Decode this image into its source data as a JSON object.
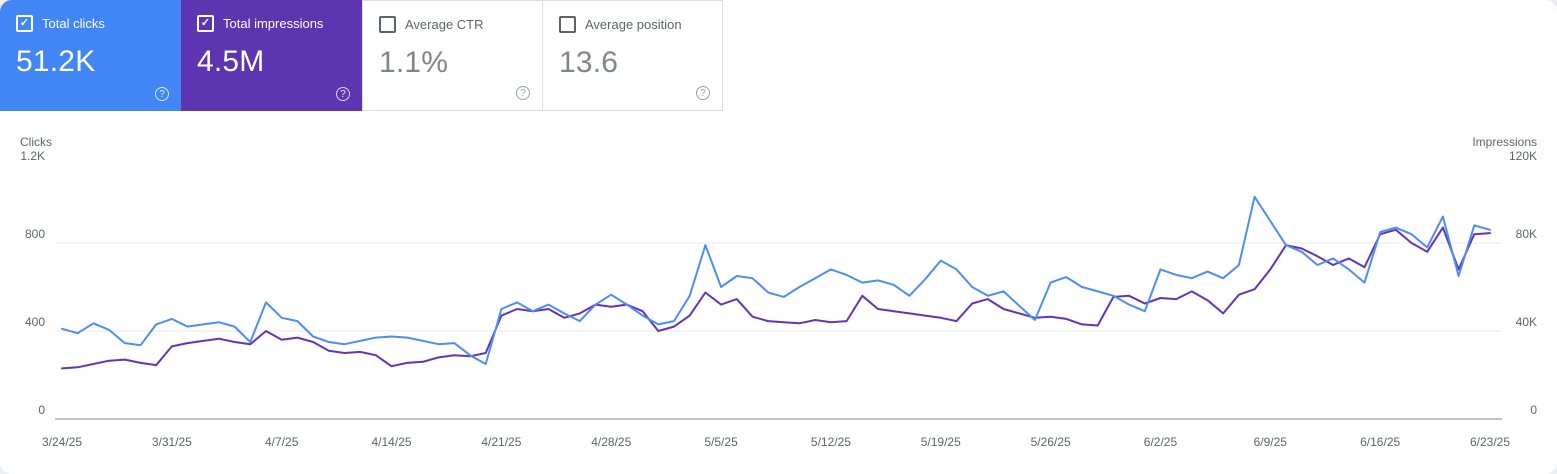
{
  "cards": [
    {
      "id": "total-clicks",
      "label": "Total clicks",
      "value": "51.2K",
      "selected": true,
      "bg": "#4285f4"
    },
    {
      "id": "total-impressions",
      "label": "Total impressions",
      "value": "4.5M",
      "selected": true,
      "bg": "#5e35b1"
    },
    {
      "id": "average-ctr",
      "label": "Average CTR",
      "value": "1.1%",
      "selected": false
    },
    {
      "id": "average-position",
      "label": "Average position",
      "value": "13.6",
      "selected": false
    }
  ],
  "chart_data": {
    "type": "line",
    "start_date": "3/24/25",
    "end_date": "6/23/25",
    "x_labels": [
      "3/24/25",
      "3/31/25",
      "4/7/25",
      "4/14/25",
      "4/21/25",
      "4/28/25",
      "5/5/25",
      "5/12/25",
      "5/19/25",
      "5/26/25",
      "6/2/25",
      "6/9/25",
      "6/16/25",
      "6/23/25"
    ],
    "left_axis": {
      "label": "Clicks",
      "max": 1200,
      "ticks": [
        {
          "value": 1200,
          "label": "1.2K"
        },
        {
          "value": 800,
          "label": "800"
        },
        {
          "value": 400,
          "label": "400"
        },
        {
          "value": 0,
          "label": "0"
        }
      ]
    },
    "right_axis": {
      "label": "Impressions",
      "max": 120000,
      "ticks": [
        {
          "value": 120000,
          "label": "120K"
        },
        {
          "value": 80000,
          "label": "80K"
        },
        {
          "value": 40000,
          "label": "40K"
        },
        {
          "value": 0,
          "label": "0"
        }
      ]
    },
    "grid": true,
    "legend": "none",
    "series": [
      {
        "name": "Total clicks",
        "axis": "left",
        "color": "#4e8df6",
        "values": [
          410,
          390,
          435,
          405,
          345,
          335,
          430,
          455,
          420,
          430,
          440,
          420,
          350,
          530,
          460,
          445,
          375,
          350,
          340,
          355,
          370,
          375,
          370,
          355,
          340,
          345,
          290,
          250,
          500,
          530,
          490,
          520,
          480,
          445,
          520,
          565,
          520,
          470,
          430,
          445,
          560,
          790,
          600,
          650,
          640,
          575,
          555,
          600,
          640,
          680,
          655,
          620,
          630,
          610,
          560,
          635,
          720,
          680,
          600,
          560,
          580,
          515,
          450,
          620,
          645,
          600,
          580,
          560,
          520,
          490,
          680,
          655,
          640,
          670,
          640,
          700,
          1010,
          900,
          790,
          760,
          700,
          730,
          680,
          620,
          850,
          870,
          840,
          780,
          920,
          650,
          880,
          860
        ]
      },
      {
        "name": "Total impressions",
        "axis": "right",
        "color": "#6334b8",
        "values": [
          23000,
          23500,
          25000,
          26500,
          27000,
          25500,
          24500,
          33000,
          34500,
          35500,
          36500,
          35000,
          34000,
          40000,
          36000,
          37000,
          35000,
          31000,
          30000,
          30500,
          29000,
          24000,
          25500,
          26000,
          28000,
          29000,
          28500,
          30000,
          47000,
          50000,
          49000,
          50000,
          46000,
          48000,
          52000,
          51000,
          52000,
          49000,
          40000,
          42000,
          47000,
          57500,
          52000,
          54500,
          46500,
          44500,
          44000,
          43500,
          45000,
          44000,
          44500,
          56000,
          50000,
          49000,
          48000,
          47000,
          46000,
          44500,
          52500,
          54500,
          50000,
          48000,
          46000,
          46500,
          45500,
          43000,
          42500,
          55500,
          56000,
          52500,
          55000,
          54500,
          58000,
          54000,
          48000,
          56500,
          59000,
          68000,
          79000,
          77500,
          74000,
          70000,
          73000,
          69000,
          84000,
          86000,
          80000,
          76000,
          87000,
          68000,
          84000,
          84500
        ]
      }
    ]
  }
}
